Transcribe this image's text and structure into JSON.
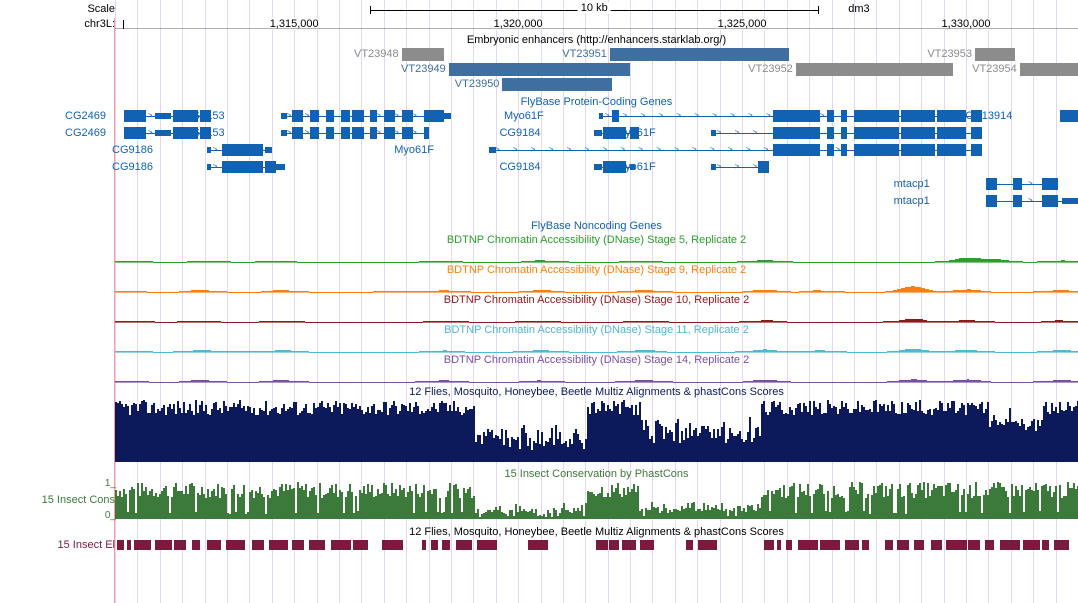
{
  "assembly": "dm3",
  "chrom": "chr3L:",
  "genomic_start": 1311000,
  "genomic_end": 1332500,
  "ruler": {
    "scale_label": "Scale",
    "scale_value": "10 kb",
    "ticks": [
      1315000,
      1320000,
      1325000,
      1330000
    ],
    "tick_labels": [
      "1,315,000",
      "1,320,000",
      "1,325,000",
      "1,330,000"
    ]
  },
  "colors": {
    "grid": "#e8d6f0",
    "gene": "#1262b3",
    "gray": "#8c8c8c",
    "blue_enh": "#3f6f9f",
    "dnase5": "#2ca02c",
    "dnase9": "#ff7f0e",
    "dnase10": "#8c1a1a",
    "dnase11": "#4fb8d6",
    "dnase14": "#7a4fa3",
    "multiz": "#0c1a5c",
    "phastcons": "#3c7a3c",
    "elements": "#7a1a3c"
  },
  "enhancer_track": {
    "title": "Embryonic enhancers (http://enhancers.starklab.org/)",
    "items": [
      {
        "label": "VT23948",
        "start": 1317400,
        "end": 1318350,
        "color": "#8c8c8c",
        "row": 0
      },
      {
        "label": "VT23951",
        "start": 1322050,
        "end": 1326050,
        "color": "#3f6f9f",
        "row": 0
      },
      {
        "label": "VT23953",
        "start": 1330200,
        "end": 1331100,
        "color": "#8c8c8c",
        "row": 0
      },
      {
        "label": "VT23949",
        "start": 1318450,
        "end": 1322500,
        "color": "#3f6f9f",
        "row": 1
      },
      {
        "label": "VT23952",
        "start": 1326200,
        "end": 1329700,
        "color": "#8c8c8c",
        "row": 1
      },
      {
        "label": "VT23954",
        "start": 1331200,
        "end": 1332500,
        "color": "#8c8c8c",
        "row": 1
      },
      {
        "label": "VT23950",
        "start": 1319650,
        "end": 1322100,
        "color": "#3f6f9f",
        "row": 2
      }
    ]
  },
  "gene_track": {
    "title": "FlyBase Protein-Coding Genes",
    "rows": [
      {
        "label": "CG2469",
        "label_x": 1311000,
        "y": 0,
        "exons": [
          [
            1311200,
            1311700,
            "thick"
          ],
          [
            1311900,
            1312250,
            "thin"
          ],
          [
            1312300,
            1312850,
            "thick"
          ],
          [
            1312900,
            1313150,
            "thick"
          ]
        ],
        "span": [
          1311200,
          1313150
        ],
        "dir": ">"
      },
      {
        "label": "CG9153",
        "label_x": 1313650,
        "y": 0,
        "exons": [
          [
            1314700,
            1314850,
            "thin"
          ],
          [
            1314950,
            1315200,
            "thick"
          ],
          [
            1315350,
            1315550,
            "thick"
          ],
          [
            1315700,
            1315900,
            "thick"
          ],
          [
            1316050,
            1316250,
            "thick"
          ],
          [
            1316300,
            1316550,
            "thick"
          ],
          [
            1316700,
            1316850,
            "thick"
          ],
          [
            1317000,
            1317250,
            "thick"
          ],
          [
            1317400,
            1317650,
            "thick"
          ],
          [
            1317900,
            1318350,
            "thick"
          ],
          [
            1318350,
            1318500,
            "thin"
          ]
        ],
        "span": [
          1314700,
          1318500
        ],
        "dir": ">"
      },
      {
        "label": "Myo61F",
        "label_x": 1320800,
        "y": 0,
        "exons": [
          [
            1321800,
            1321900,
            "thin"
          ],
          [
            1322100,
            1322250,
            "thick"
          ],
          [
            1325700,
            1326750,
            "thick"
          ],
          [
            1326900,
            1327050,
            "thick"
          ],
          [
            1327200,
            1327350,
            "thick"
          ],
          [
            1327500,
            1328500,
            "thick"
          ],
          [
            1328550,
            1329300,
            "thick"
          ],
          [
            1329350,
            1330000,
            "thick"
          ],
          [
            1330100,
            1330350,
            "thick"
          ]
        ],
        "span": [
          1321800,
          1330350
        ],
        "dir": ">"
      },
      {
        "label": "CG13914",
        "label_x": 1331100,
        "y": 0,
        "exons": [
          [
            1332100,
            1332500,
            "thick"
          ]
        ],
        "span": [
          1332100,
          1332500
        ],
        "dir": ">"
      },
      {
        "label": "CG2469",
        "label_x": 1311000,
        "y": 1,
        "exons": [
          [
            1311200,
            1311700,
            "thick"
          ],
          [
            1311900,
            1312250,
            "thin"
          ],
          [
            1312300,
            1312850,
            "thick"
          ],
          [
            1312900,
            1313150,
            "thick"
          ]
        ],
        "span": [
          1311200,
          1313150
        ],
        "dir": ">"
      },
      {
        "label": "CG9153",
        "label_x": 1313650,
        "y": 1,
        "exons": [
          [
            1314700,
            1314850,
            "thin"
          ],
          [
            1314950,
            1315200,
            "thick"
          ],
          [
            1315350,
            1315550,
            "thick"
          ],
          [
            1315700,
            1315900,
            "thick"
          ],
          [
            1316050,
            1316250,
            "thick"
          ],
          [
            1316300,
            1316550,
            "thick"
          ],
          [
            1316700,
            1316850,
            "thick"
          ],
          [
            1317000,
            1317250,
            "thick"
          ],
          [
            1317400,
            1317650,
            "thick"
          ],
          [
            1317900,
            1318020,
            "thick"
          ]
        ],
        "span": [
          1314700,
          1318020
        ],
        "dir": ">"
      },
      {
        "label": "CG9184",
        "label_x": 1320700,
        "y": 1,
        "exons": [
          [
            1321700,
            1321880,
            "thin"
          ],
          [
            1321900,
            1322400,
            "thick"
          ],
          [
            1322500,
            1322700,
            "thick"
          ]
        ],
        "span": [
          1321700,
          1322700
        ],
        "dir": ">"
      },
      {
        "label": "Myo61F",
        "label_x": 1323300,
        "y": 1,
        "exons": [
          [
            1324300,
            1324420,
            "thin"
          ],
          [
            1325700,
            1326750,
            "thick"
          ],
          [
            1326900,
            1327050,
            "thick"
          ],
          [
            1327200,
            1327350,
            "thick"
          ],
          [
            1327500,
            1328500,
            "thick"
          ],
          [
            1328550,
            1329300,
            "thick"
          ],
          [
            1329350,
            1330000,
            "thick"
          ],
          [
            1330100,
            1330350,
            "thick"
          ]
        ],
        "span": [
          1324300,
          1330350
        ],
        "dir": ">"
      },
      {
        "label": "CG9186",
        "label_x": 1312050,
        "y": 2,
        "exons": [
          [
            1313050,
            1313150,
            "thin"
          ],
          [
            1313400,
            1314300,
            "thick"
          ],
          [
            1314350,
            1314500,
            "thin"
          ]
        ],
        "span": [
          1313050,
          1314500
        ],
        "dir": ">"
      },
      {
        "label": "Myo61F",
        "label_x": 1318350,
        "y": 2,
        "exons": [
          [
            1319350,
            1319500,
            "thin"
          ],
          [
            1325700,
            1326750,
            "thick"
          ],
          [
            1326900,
            1327050,
            "thick"
          ],
          [
            1327200,
            1327350,
            "thick"
          ],
          [
            1327500,
            1328500,
            "thick"
          ],
          [
            1328550,
            1329300,
            "thick"
          ],
          [
            1329350,
            1330000,
            "thick"
          ],
          [
            1330100,
            1330350,
            "thick"
          ]
        ],
        "span": [
          1319350,
          1330350
        ],
        "dir": ">"
      },
      {
        "label": "CG9186",
        "label_x": 1312050,
        "y": 3,
        "exons": [
          [
            1313050,
            1313150,
            "thin"
          ],
          [
            1313400,
            1314300,
            "thick"
          ],
          [
            1314350,
            1314600,
            "thick"
          ],
          [
            1314600,
            1314800,
            "thin"
          ]
        ],
        "span": [
          1313050,
          1314800
        ],
        "dir": ">"
      },
      {
        "label": "CG9184",
        "label_x": 1320700,
        "y": 3,
        "exons": [
          [
            1321700,
            1321880,
            "thin"
          ],
          [
            1321900,
            1322400,
            "thick"
          ],
          [
            1322500,
            1322600,
            "thin"
          ]
        ],
        "span": [
          1321700,
          1322600
        ],
        "dir": ">"
      },
      {
        "label": "Myo61F",
        "label_x": 1323300,
        "y": 3,
        "exons": [
          [
            1324300,
            1324420,
            "thin"
          ],
          [
            1325350,
            1325600,
            "thick"
          ]
        ],
        "span": [
          1324300,
          1325600
        ],
        "dir": ">"
      },
      {
        "label": "mtacp1",
        "label_x": 1329500,
        "y": 4,
        "exons": [
          [
            1330450,
            1330700,
            "thick"
          ],
          [
            1331050,
            1331250,
            "thick"
          ],
          [
            1331700,
            1332050,
            "thick"
          ]
        ],
        "span": [
          1330450,
          1332050
        ],
        "dir": ">"
      },
      {
        "label": "mtacp1",
        "label_x": 1329500,
        "y": 5,
        "exons": [
          [
            1330450,
            1330700,
            "thick"
          ],
          [
            1331050,
            1331250,
            "thick"
          ],
          [
            1331700,
            1332050,
            "thick"
          ],
          [
            1332150,
            1332500,
            "thin"
          ]
        ],
        "span": [
          1330450,
          1332500
        ],
        "dir": ">"
      }
    ]
  },
  "noncoding_title": "FlyBase Noncoding Genes",
  "dnase_tracks": [
    {
      "label": "BDTNP Chromatin Accessibility (DNase) Stage 5, Replicate 2",
      "color": "#2ca02c",
      "peaks": [
        [
          1311400,
          0.05
        ],
        [
          1313000,
          0.07
        ],
        [
          1314700,
          0.05
        ],
        [
          1318300,
          0.06
        ],
        [
          1320500,
          0.08
        ],
        [
          1322800,
          0.06
        ],
        [
          1325500,
          0.1
        ],
        [
          1330000,
          0.25
        ],
        [
          1330600,
          0.18
        ],
        [
          1332100,
          0.08
        ]
      ]
    },
    {
      "label": "BDTNP Chromatin Accessibility (DNase) Stage 9, Replicate 2",
      "color": "#ff7f0e",
      "peaks": [
        [
          1311300,
          0.06
        ],
        [
          1312900,
          0.1
        ],
        [
          1314700,
          0.1
        ],
        [
          1317100,
          0.05
        ],
        [
          1318300,
          0.08
        ],
        [
          1320500,
          0.1
        ],
        [
          1322800,
          0.1
        ],
        [
          1325500,
          0.12
        ],
        [
          1326700,
          0.08
        ],
        [
          1328800,
          0.35
        ],
        [
          1330000,
          0.15
        ],
        [
          1332100,
          0.1
        ]
      ]
    },
    {
      "label": "BDTNP Chromatin Accessibility (DNase) Stage 10, Replicate 2",
      "color": "#8c1a1a",
      "peaks": [
        [
          1311300,
          0.05
        ],
        [
          1312900,
          0.07
        ],
        [
          1314700,
          0.08
        ],
        [
          1318300,
          0.07
        ],
        [
          1320500,
          0.07
        ],
        [
          1322800,
          0.08
        ],
        [
          1325500,
          0.09
        ],
        [
          1328800,
          0.2
        ],
        [
          1330000,
          0.1
        ],
        [
          1332100,
          0.08
        ]
      ]
    },
    {
      "label": "BDTNP Chromatin Accessibility (DNase) Stage 11, Replicate 2",
      "color": "#4fb8d6",
      "peaks": [
        [
          1311300,
          0.08
        ],
        [
          1312900,
          0.1
        ],
        [
          1313600,
          0.06
        ],
        [
          1314700,
          0.1
        ],
        [
          1318300,
          0.08
        ],
        [
          1320500,
          0.1
        ],
        [
          1322800,
          0.12
        ],
        [
          1325500,
          0.14
        ],
        [
          1326700,
          0.08
        ],
        [
          1328800,
          0.18
        ],
        [
          1330000,
          0.12
        ],
        [
          1332100,
          0.1
        ]
      ]
    },
    {
      "label": "BDTNP Chromatin Accessibility (DNase) Stage 14, Replicate 2",
      "color": "#7a4fa3",
      "peaks": [
        [
          1311300,
          0.06
        ],
        [
          1312900,
          0.1
        ],
        [
          1314700,
          0.1
        ],
        [
          1318300,
          0.08
        ],
        [
          1320500,
          0.08
        ],
        [
          1322800,
          0.1
        ],
        [
          1325500,
          0.12
        ],
        [
          1328800,
          0.15
        ],
        [
          1330000,
          0.15
        ],
        [
          1332100,
          0.1
        ]
      ]
    }
  ],
  "multiz_title": "12 Flies, Mosquito, Honeybee, Beetle Multiz Alignments & phastCons Scores",
  "phastcons": {
    "title": "15 Insect Conservation by PhastCons",
    "side_label": "15 Insect Cons",
    "ymin": 0,
    "ymax": 1
  },
  "elements": {
    "title": "12 Flies, Mosquito, Honeybee, Beetle Multiz Alignments & phastCons Scores",
    "side_label": "15 Insect El"
  }
}
